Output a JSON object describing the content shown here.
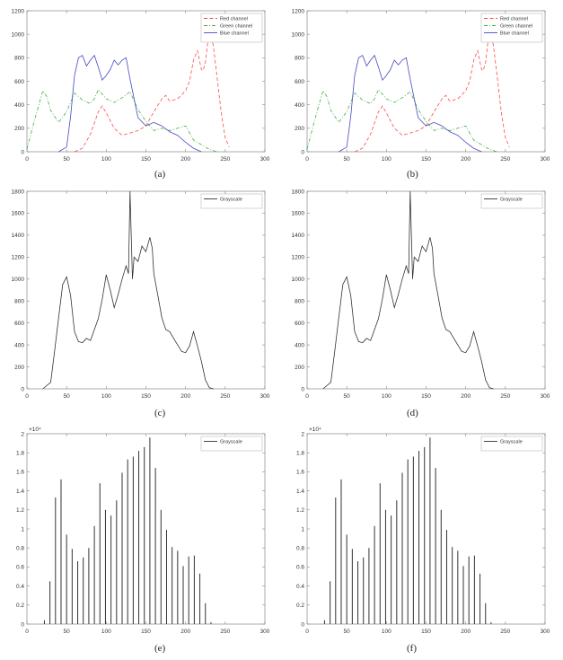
{
  "captions": [
    "(a)",
    "(b)",
    "(c)",
    "(d)",
    "(e)",
    "(f)"
  ],
  "chart_data": [
    {
      "id": "a",
      "type": "line",
      "xlim": [
        0,
        300
      ],
      "ylim": [
        0,
        1200
      ],
      "xticks": [
        "0",
        "50",
        "100",
        "150",
        "200",
        "250",
        "300"
      ],
      "yticks": [
        "0",
        "200",
        "400",
        "600",
        "800",
        "1000",
        "1200"
      ],
      "legend_position": "top-right",
      "series": [
        {
          "name": "Red channel",
          "color": "#ff4a4a",
          "dash": "dashed",
          "x": [
            60,
            70,
            80,
            90,
            95,
            100,
            110,
            120,
            130,
            140,
            150,
            160,
            170,
            175,
            180,
            190,
            200,
            205,
            210,
            215,
            220,
            222,
            225,
            230,
            235,
            240,
            245,
            250,
            255
          ],
          "y": [
            0,
            30,
            150,
            340,
            390,
            330,
            200,
            140,
            160,
            180,
            220,
            340,
            450,
            480,
            430,
            450,
            520,
            600,
            780,
            860,
            700,
            690,
            760,
            1060,
            900,
            620,
            330,
            120,
            40
          ]
        },
        {
          "name": "Green channel",
          "color": "#3fb13f",
          "dash": "dashdot",
          "x": [
            0,
            10,
            20,
            25,
            30,
            40,
            50,
            60,
            70,
            80,
            85,
            90,
            100,
            110,
            120,
            130,
            140,
            150,
            160,
            170,
            180,
            190,
            200,
            210,
            220,
            230,
            240
          ],
          "y": [
            20,
            280,
            520,
            470,
            350,
            250,
            340,
            500,
            440,
            410,
            450,
            530,
            450,
            420,
            460,
            510,
            360,
            260,
            180,
            200,
            180,
            200,
            220,
            100,
            60,
            20,
            0
          ]
        },
        {
          "name": "Blue channel",
          "color": "#4747c4",
          "dash": "solid",
          "x": [
            40,
            50,
            55,
            60,
            65,
            70,
            75,
            80,
            85,
            90,
            95,
            100,
            105,
            110,
            115,
            120,
            125,
            130,
            140,
            150,
            160,
            170,
            180,
            190,
            200,
            210,
            220
          ],
          "y": [
            0,
            40,
            300,
            650,
            800,
            820,
            730,
            780,
            820,
            720,
            610,
            650,
            700,
            780,
            740,
            780,
            800,
            620,
            290,
            220,
            250,
            220,
            170,
            140,
            80,
            30,
            0
          ]
        }
      ]
    },
    {
      "id": "b",
      "type": "line",
      "xlim": [
        0,
        300
      ],
      "ylim": [
        0,
        1200
      ],
      "xticks": [
        "0",
        "50",
        "100",
        "150",
        "200",
        "250",
        "300"
      ],
      "yticks": [
        "0",
        "200",
        "400",
        "600",
        "800",
        "1000",
        "1200"
      ],
      "legend_position": "top-right",
      "series": [
        {
          "name": "Red channel",
          "color": "#ff4a4a",
          "dash": "dashed",
          "x": [
            60,
            70,
            80,
            90,
            95,
            100,
            110,
            120,
            130,
            140,
            150,
            160,
            170,
            175,
            180,
            190,
            200,
            205,
            210,
            215,
            220,
            222,
            225,
            230,
            235,
            240,
            245,
            250,
            255
          ],
          "y": [
            0,
            30,
            150,
            340,
            390,
            330,
            200,
            140,
            160,
            180,
            220,
            340,
            450,
            480,
            430,
            450,
            520,
            600,
            780,
            860,
            700,
            690,
            760,
            1060,
            900,
            620,
            330,
            120,
            40
          ]
        },
        {
          "name": "Green channel",
          "color": "#3fb13f",
          "dash": "dashdot",
          "x": [
            0,
            10,
            20,
            25,
            30,
            40,
            50,
            60,
            70,
            80,
            85,
            90,
            100,
            110,
            120,
            130,
            140,
            150,
            160,
            170,
            180,
            190,
            200,
            210,
            220,
            230,
            240
          ],
          "y": [
            20,
            280,
            520,
            470,
            350,
            250,
            340,
            500,
            440,
            410,
            450,
            530,
            450,
            420,
            460,
            510,
            360,
            260,
            180,
            200,
            180,
            200,
            220,
            100,
            60,
            20,
            0
          ]
        },
        {
          "name": "Blue channel",
          "color": "#4747c4",
          "dash": "solid",
          "x": [
            40,
            50,
            55,
            60,
            65,
            70,
            75,
            80,
            85,
            90,
            95,
            100,
            105,
            110,
            115,
            120,
            125,
            130,
            140,
            150,
            160,
            170,
            180,
            190,
            200,
            210,
            220
          ],
          "y": [
            0,
            40,
            300,
            650,
            800,
            820,
            730,
            780,
            820,
            720,
            610,
            650,
            700,
            780,
            740,
            780,
            800,
            620,
            290,
            220,
            250,
            220,
            170,
            140,
            80,
            30,
            0
          ]
        }
      ]
    },
    {
      "id": "c",
      "type": "line",
      "xlim": [
        0,
        300
      ],
      "ylim": [
        0,
        1800
      ],
      "xticks": [
        "0",
        "50",
        "100",
        "150",
        "200",
        "250",
        "300"
      ],
      "yticks": [
        "0",
        "200",
        "400",
        "600",
        "800",
        "1000",
        "1200",
        "1400",
        "1600",
        "1800"
      ],
      "legend_position": "top-right",
      "series": [
        {
          "name": "Grayscale",
          "color": "#333333",
          "dash": "solid",
          "x": [
            20,
            30,
            35,
            40,
            45,
            50,
            55,
            60,
            65,
            70,
            75,
            80,
            85,
            90,
            95,
            100,
            105,
            110,
            115,
            120,
            125,
            128,
            130,
            133,
            135,
            140,
            145,
            150,
            155,
            158,
            160,
            165,
            170,
            175,
            180,
            185,
            190,
            195,
            200,
            205,
            210,
            215,
            220,
            225,
            230,
            235
          ],
          "y": [
            0,
            60,
            350,
            650,
            950,
            1020,
            850,
            520,
            430,
            420,
            460,
            440,
            540,
            640,
            820,
            1040,
            900,
            740,
            860,
            1000,
            1120,
            1050,
            1800,
            1000,
            1200,
            1160,
            1300,
            1250,
            1380,
            1280,
            1050,
            850,
            650,
            540,
            520,
            460,
            400,
            340,
            330,
            390,
            520,
            390,
            250,
            80,
            10,
            0
          ]
        }
      ]
    },
    {
      "id": "d",
      "type": "line",
      "xlim": [
        0,
        300
      ],
      "ylim": [
        0,
        1800
      ],
      "xticks": [
        "0",
        "50",
        "100",
        "150",
        "200",
        "250",
        "300"
      ],
      "yticks": [
        "0",
        "200",
        "400",
        "600",
        "800",
        "1000",
        "1200",
        "1400",
        "1600",
        "1800"
      ],
      "legend_position": "top-right",
      "series": [
        {
          "name": "Grayscale",
          "color": "#333333",
          "dash": "solid",
          "x": [
            20,
            30,
            35,
            40,
            45,
            50,
            55,
            60,
            65,
            70,
            75,
            80,
            85,
            90,
            95,
            100,
            105,
            110,
            115,
            120,
            125,
            128,
            130,
            133,
            135,
            140,
            145,
            150,
            155,
            158,
            160,
            165,
            170,
            175,
            180,
            185,
            190,
            195,
            200,
            205,
            210,
            215,
            220,
            225,
            230,
            235
          ],
          "y": [
            0,
            60,
            350,
            650,
            950,
            1020,
            850,
            520,
            430,
            420,
            460,
            440,
            540,
            640,
            820,
            1040,
            900,
            740,
            860,
            1000,
            1120,
            1050,
            1800,
            1000,
            1200,
            1160,
            1300,
            1250,
            1380,
            1280,
            1050,
            850,
            650,
            540,
            520,
            460,
            400,
            340,
            330,
            390,
            520,
            390,
            250,
            80,
            10,
            0
          ]
        }
      ]
    },
    {
      "id": "e",
      "type": "stem",
      "xlim": [
        0,
        300
      ],
      "ylim": [
        0,
        2
      ],
      "y_multiplier": "×10⁴",
      "xticks": [
        "0",
        "50",
        "100",
        "150",
        "200",
        "250",
        "300"
      ],
      "yticks": [
        "0",
        "0.2",
        "0.4",
        "0.6",
        "0.8",
        "1",
        "1.2",
        "1.4",
        "1.6",
        "1.8",
        "2"
      ],
      "legend_position": "top-right",
      "series": [
        {
          "name": "Grayscale",
          "color": "#333333",
          "dash": "solid",
          "x": [
            22,
            29,
            36,
            43,
            50,
            57,
            64,
            71,
            78,
            85,
            92,
            99,
            106,
            113,
            120,
            127,
            134,
            141,
            148,
            155,
            162,
            169,
            176,
            183,
            190,
            197,
            204,
            211,
            218,
            225,
            232
          ],
          "y": [
            0.04,
            0.45,
            1.33,
            1.52,
            0.94,
            0.79,
            0.66,
            0.7,
            0.8,
            1.03,
            1.48,
            1.2,
            1.14,
            1.3,
            1.59,
            1.73,
            1.76,
            1.82,
            1.86,
            1.96,
            1.64,
            1.2,
            0.99,
            0.81,
            0.77,
            0.61,
            0.71,
            0.72,
            0.53,
            0.22,
            0.02
          ]
        }
      ]
    },
    {
      "id": "f",
      "type": "stem",
      "xlim": [
        0,
        300
      ],
      "ylim": [
        0,
        2
      ],
      "y_multiplier": "×10⁴",
      "xticks": [
        "0",
        "50",
        "100",
        "150",
        "200",
        "250",
        "300"
      ],
      "yticks": [
        "0",
        "0.2",
        "0.4",
        "0.6",
        "0.8",
        "1",
        "1.2",
        "1.4",
        "1.6",
        "1.8",
        "2"
      ],
      "legend_position": "top-right",
      "series": [
        {
          "name": "Grayscale",
          "color": "#333333",
          "dash": "solid",
          "x": [
            22,
            29,
            36,
            43,
            50,
            57,
            64,
            71,
            78,
            85,
            92,
            99,
            106,
            113,
            120,
            127,
            134,
            141,
            148,
            155,
            162,
            169,
            176,
            183,
            190,
            197,
            204,
            211,
            218,
            225,
            232
          ],
          "y": [
            0.04,
            0.45,
            1.33,
            1.52,
            0.94,
            0.79,
            0.66,
            0.7,
            0.8,
            1.03,
            1.48,
            1.2,
            1.14,
            1.3,
            1.59,
            1.73,
            1.76,
            1.82,
            1.86,
            1.96,
            1.64,
            1.2,
            0.99,
            0.81,
            0.77,
            0.61,
            0.71,
            0.72,
            0.53,
            0.22,
            0.02
          ]
        }
      ]
    }
  ]
}
